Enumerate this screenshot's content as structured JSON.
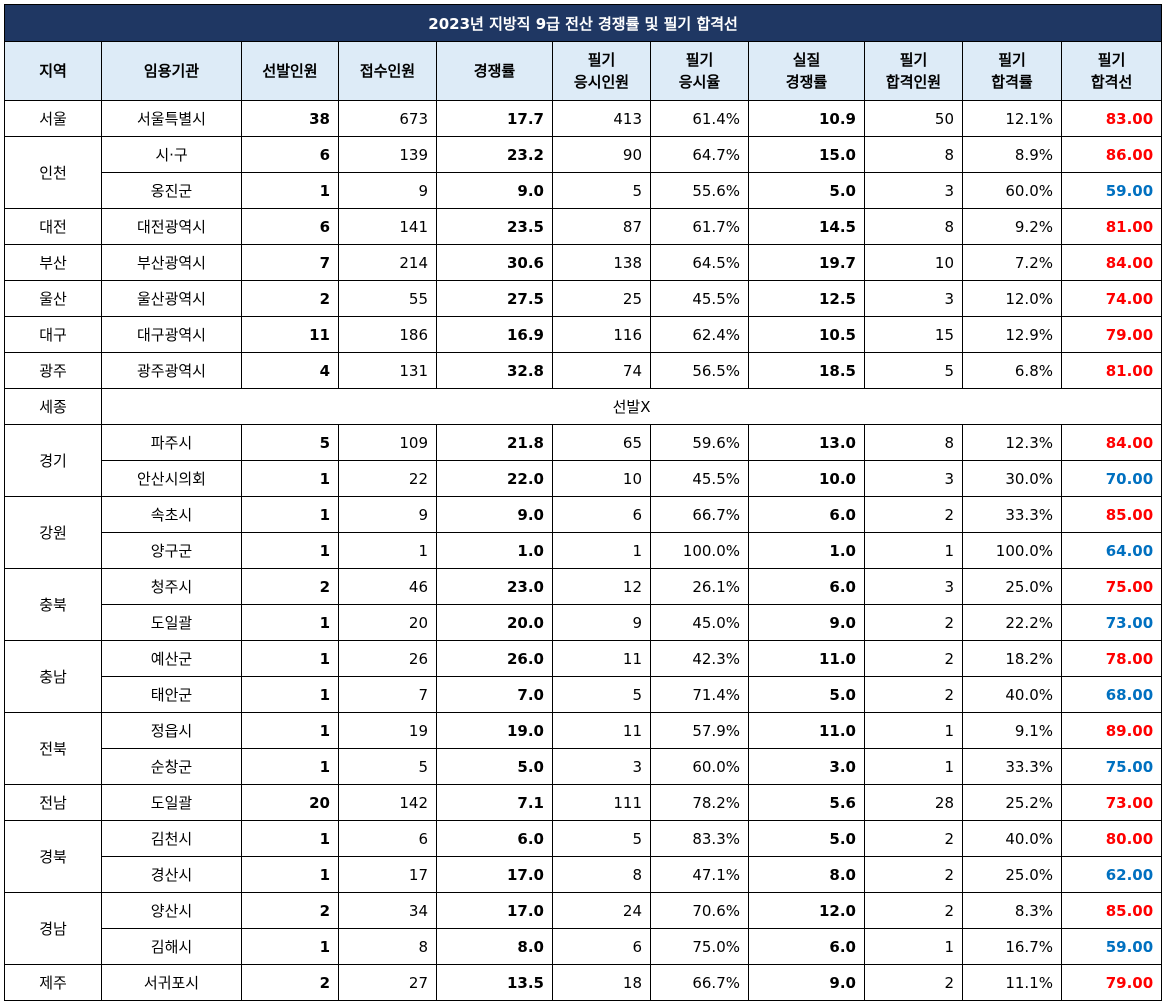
{
  "title": "2023년 지방직 9급 전산 경쟁률 및 필기 합격선",
  "headers": [
    [
      "지역"
    ],
    [
      "임용기관"
    ],
    [
      "선발인원"
    ],
    [
      "접수인원"
    ],
    [
      "경쟁률"
    ],
    [
      "필기",
      "응시인원"
    ],
    [
      "필기",
      "응시율"
    ],
    [
      "실질",
      "경쟁률"
    ],
    [
      "필기",
      "합격인원"
    ],
    [
      "필기",
      "합격률"
    ],
    [
      "필기",
      "합격선"
    ]
  ],
  "colors": {
    "title_bg": "#1f3763",
    "header_bg": "#ddebf7",
    "high_cutoff": "#ff0000",
    "low_cutoff": "#0070c0"
  },
  "groups": [
    {
      "region": "서울",
      "rows": [
        {
          "agency": "서울특별시",
          "selected": "38",
          "applied": "673",
          "ratio": "17.7",
          "takers": "413",
          "take_rate": "61.4%",
          "real_ratio": "10.9",
          "passed": "50",
          "pass_rate": "12.1%",
          "cutoff": "83.00",
          "cutoff_color": "#ff0000"
        }
      ]
    },
    {
      "region": "인천",
      "rows": [
        {
          "agency": "시·구",
          "selected": "6",
          "applied": "139",
          "ratio": "23.2",
          "takers": "90",
          "take_rate": "64.7%",
          "real_ratio": "15.0",
          "passed": "8",
          "pass_rate": "8.9%",
          "cutoff": "86.00",
          "cutoff_color": "#ff0000"
        },
        {
          "agency": "옹진군",
          "selected": "1",
          "applied": "9",
          "ratio": "9.0",
          "takers": "5",
          "take_rate": "55.6%",
          "real_ratio": "5.0",
          "passed": "3",
          "pass_rate": "60.0%",
          "cutoff": "59.00",
          "cutoff_color": "#0070c0"
        }
      ]
    },
    {
      "region": "대전",
      "rows": [
        {
          "agency": "대전광역시",
          "selected": "6",
          "applied": "141",
          "ratio": "23.5",
          "takers": "87",
          "take_rate": "61.7%",
          "real_ratio": "14.5",
          "passed": "8",
          "pass_rate": "9.2%",
          "cutoff": "81.00",
          "cutoff_color": "#ff0000"
        }
      ]
    },
    {
      "region": "부산",
      "rows": [
        {
          "agency": "부산광역시",
          "selected": "7",
          "applied": "214",
          "ratio": "30.6",
          "takers": "138",
          "take_rate": "64.5%",
          "real_ratio": "19.7",
          "passed": "10",
          "pass_rate": "7.2%",
          "cutoff": "84.00",
          "cutoff_color": "#ff0000"
        }
      ]
    },
    {
      "region": "울산",
      "rows": [
        {
          "agency": "울산광역시",
          "selected": "2",
          "applied": "55",
          "ratio": "27.5",
          "takers": "25",
          "take_rate": "45.5%",
          "real_ratio": "12.5",
          "passed": "3",
          "pass_rate": "12.0%",
          "cutoff": "74.00",
          "cutoff_color": "#ff0000"
        }
      ]
    },
    {
      "region": "대구",
      "rows": [
        {
          "agency": "대구광역시",
          "selected": "11",
          "applied": "186",
          "ratio": "16.9",
          "takers": "116",
          "take_rate": "62.4%",
          "real_ratio": "10.5",
          "passed": "15",
          "pass_rate": "12.9%",
          "cutoff": "79.00",
          "cutoff_color": "#ff0000"
        }
      ]
    },
    {
      "region": "광주",
      "rows": [
        {
          "agency": "광주광역시",
          "selected": "4",
          "applied": "131",
          "ratio": "32.8",
          "takers": "74",
          "take_rate": "56.5%",
          "real_ratio": "18.5",
          "passed": "5",
          "pass_rate": "6.8%",
          "cutoff": "81.00",
          "cutoff_color": "#ff0000"
        }
      ]
    },
    {
      "region": "세종",
      "note": "선발X",
      "rows": []
    },
    {
      "region": "경기",
      "rows": [
        {
          "agency": "파주시",
          "selected": "5",
          "applied": "109",
          "ratio": "21.8",
          "takers": "65",
          "take_rate": "59.6%",
          "real_ratio": "13.0",
          "passed": "8",
          "pass_rate": "12.3%",
          "cutoff": "84.00",
          "cutoff_color": "#ff0000"
        },
        {
          "agency": "안산시의회",
          "selected": "1",
          "applied": "22",
          "ratio": "22.0",
          "takers": "10",
          "take_rate": "45.5%",
          "real_ratio": "10.0",
          "passed": "3",
          "pass_rate": "30.0%",
          "cutoff": "70.00",
          "cutoff_color": "#0070c0"
        }
      ]
    },
    {
      "region": "강원",
      "rows": [
        {
          "agency": "속초시",
          "selected": "1",
          "applied": "9",
          "ratio": "9.0",
          "takers": "6",
          "take_rate": "66.7%",
          "real_ratio": "6.0",
          "passed": "2",
          "pass_rate": "33.3%",
          "cutoff": "85.00",
          "cutoff_color": "#ff0000"
        },
        {
          "agency": "양구군",
          "selected": "1",
          "applied": "1",
          "ratio": "1.0",
          "takers": "1",
          "take_rate": "100.0%",
          "real_ratio": "1.0",
          "passed": "1",
          "pass_rate": "100.0%",
          "cutoff": "64.00",
          "cutoff_color": "#0070c0"
        }
      ]
    },
    {
      "region": "충북",
      "rows": [
        {
          "agency": "청주시",
          "selected": "2",
          "applied": "46",
          "ratio": "23.0",
          "takers": "12",
          "take_rate": "26.1%",
          "real_ratio": "6.0",
          "passed": "3",
          "pass_rate": "25.0%",
          "cutoff": "75.00",
          "cutoff_color": "#ff0000"
        },
        {
          "agency": "도일괄",
          "selected": "1",
          "applied": "20",
          "ratio": "20.0",
          "takers": "9",
          "take_rate": "45.0%",
          "real_ratio": "9.0",
          "passed": "2",
          "pass_rate": "22.2%",
          "cutoff": "73.00",
          "cutoff_color": "#0070c0"
        }
      ]
    },
    {
      "region": "충남",
      "rows": [
        {
          "agency": "예산군",
          "selected": "1",
          "applied": "26",
          "ratio": "26.0",
          "takers": "11",
          "take_rate": "42.3%",
          "real_ratio": "11.0",
          "passed": "2",
          "pass_rate": "18.2%",
          "cutoff": "78.00",
          "cutoff_color": "#ff0000"
        },
        {
          "agency": "태안군",
          "selected": "1",
          "applied": "7",
          "ratio": "7.0",
          "takers": "5",
          "take_rate": "71.4%",
          "real_ratio": "5.0",
          "passed": "2",
          "pass_rate": "40.0%",
          "cutoff": "68.00",
          "cutoff_color": "#0070c0"
        }
      ]
    },
    {
      "region": "전북",
      "rows": [
        {
          "agency": "정읍시",
          "selected": "1",
          "applied": "19",
          "ratio": "19.0",
          "takers": "11",
          "take_rate": "57.9%",
          "real_ratio": "11.0",
          "passed": "1",
          "pass_rate": "9.1%",
          "cutoff": "89.00",
          "cutoff_color": "#ff0000"
        },
        {
          "agency": "순창군",
          "selected": "1",
          "applied": "5",
          "ratio": "5.0",
          "takers": "3",
          "take_rate": "60.0%",
          "real_ratio": "3.0",
          "passed": "1",
          "pass_rate": "33.3%",
          "cutoff": "75.00",
          "cutoff_color": "#0070c0"
        }
      ]
    },
    {
      "region": "전남",
      "rows": [
        {
          "agency": "도일괄",
          "selected": "20",
          "applied": "142",
          "ratio": "7.1",
          "takers": "111",
          "take_rate": "78.2%",
          "real_ratio": "5.6",
          "passed": "28",
          "pass_rate": "25.2%",
          "cutoff": "73.00",
          "cutoff_color": "#ff0000"
        }
      ]
    },
    {
      "region": "경북",
      "rows": [
        {
          "agency": "김천시",
          "selected": "1",
          "applied": "6",
          "ratio": "6.0",
          "takers": "5",
          "take_rate": "83.3%",
          "real_ratio": "5.0",
          "passed": "2",
          "pass_rate": "40.0%",
          "cutoff": "80.00",
          "cutoff_color": "#ff0000"
        },
        {
          "agency": "경산시",
          "selected": "1",
          "applied": "17",
          "ratio": "17.0",
          "takers": "8",
          "take_rate": "47.1%",
          "real_ratio": "8.0",
          "passed": "2",
          "pass_rate": "25.0%",
          "cutoff": "62.00",
          "cutoff_color": "#0070c0"
        }
      ]
    },
    {
      "region": "경남",
      "rows": [
        {
          "agency": "양산시",
          "selected": "2",
          "applied": "34",
          "ratio": "17.0",
          "takers": "24",
          "take_rate": "70.6%",
          "real_ratio": "12.0",
          "passed": "2",
          "pass_rate": "8.3%",
          "cutoff": "85.00",
          "cutoff_color": "#ff0000"
        },
        {
          "agency": "김해시",
          "selected": "1",
          "applied": "8",
          "ratio": "8.0",
          "takers": "6",
          "take_rate": "75.0%",
          "real_ratio": "6.0",
          "passed": "1",
          "pass_rate": "16.7%",
          "cutoff": "59.00",
          "cutoff_color": "#0070c0"
        }
      ]
    },
    {
      "region": "제주",
      "rows": [
        {
          "agency": "서귀포시",
          "selected": "2",
          "applied": "27",
          "ratio": "13.5",
          "takers": "18",
          "take_rate": "66.7%",
          "real_ratio": "9.0",
          "passed": "2",
          "pass_rate": "11.1%",
          "cutoff": "79.00",
          "cutoff_color": "#ff0000"
        }
      ]
    }
  ]
}
